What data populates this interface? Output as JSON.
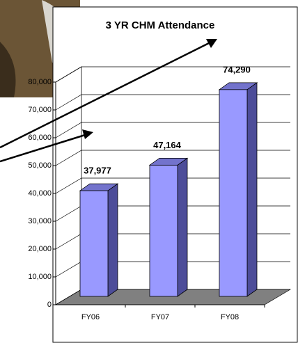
{
  "chart_data": {
    "type": "bar",
    "title": "3 YR CHM Attendance",
    "categories": [
      "FY06",
      "FY07",
      "FY08"
    ],
    "values": [
      37977,
      47164,
      74290
    ],
    "value_labels": [
      "37,977",
      "47,164",
      "74,290"
    ],
    "color": "#9999ff",
    "ylim": [
      0,
      80000
    ],
    "yticks": [
      0,
      {
        "value": 10000,
        "label": "10,000"
      },
      {
        "value": 20000,
        "label": "20,000"
      },
      {
        "value": 30000,
        "label": "30,000"
      },
      {
        "value": 40000,
        "label": "40,000"
      },
      {
        "value": 50000,
        "label": "50,000"
      },
      {
        "value": 60000,
        "label": "60,000"
      },
      {
        "value": 70000,
        "label": "70,000"
      },
      {
        "value": 80000,
        "label": "80,000"
      }
    ],
    "grid": true
  }
}
